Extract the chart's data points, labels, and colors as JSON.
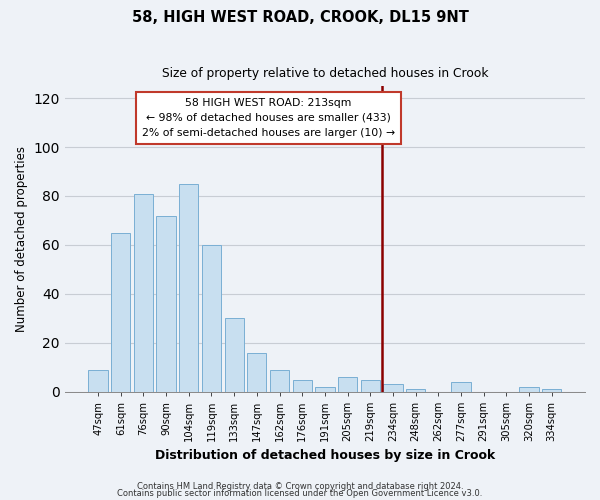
{
  "title": "58, HIGH WEST ROAD, CROOK, DL15 9NT",
  "subtitle": "Size of property relative to detached houses in Crook",
  "xlabel": "Distribution of detached houses by size in Crook",
  "ylabel": "Number of detached properties",
  "bar_labels": [
    "47sqm",
    "61sqm",
    "76sqm",
    "90sqm",
    "104sqm",
    "119sqm",
    "133sqm",
    "147sqm",
    "162sqm",
    "176sqm",
    "191sqm",
    "205sqm",
    "219sqm",
    "234sqm",
    "248sqm",
    "262sqm",
    "277sqm",
    "291sqm",
    "305sqm",
    "320sqm",
    "334sqm"
  ],
  "bar_heights": [
    9,
    65,
    81,
    72,
    85,
    60,
    30,
    16,
    9,
    5,
    2,
    6,
    5,
    3,
    1,
    0,
    4,
    0,
    0,
    2,
    1
  ],
  "bar_color": "#c8dff0",
  "bar_edge_color": "#7aafd4",
  "vline_x": 12.5,
  "vline_color": "#8b0000",
  "annotation_title": "58 HIGH WEST ROAD: 213sqm",
  "annotation_line1": "← 98% of detached houses are smaller (433)",
  "annotation_line2": "2% of semi-detached houses are larger (10) →",
  "annotation_box_color": "white",
  "annotation_box_edge": "#c0392b",
  "ylim": [
    0,
    125
  ],
  "yticks": [
    0,
    20,
    40,
    60,
    80,
    100,
    120
  ],
  "footer1": "Contains HM Land Registry data © Crown copyright and database right 2024.",
  "footer2": "Contains public sector information licensed under the Open Government Licence v3.0.",
  "background_color": "#eef2f7"
}
